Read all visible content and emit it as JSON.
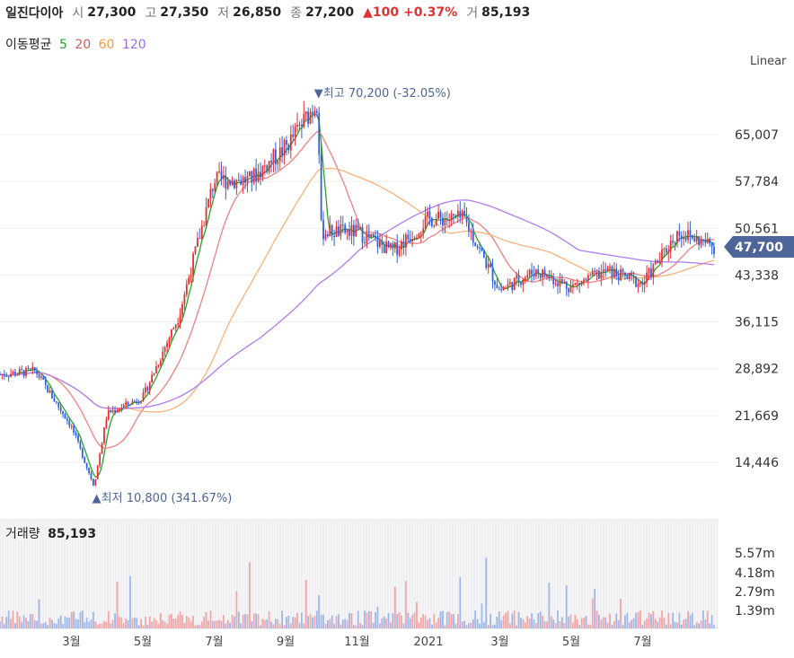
{
  "header": {
    "name": "일진다이아",
    "open_label": "시",
    "open": "27,300",
    "high_label": "고",
    "high": "27,350",
    "low_label": "저",
    "low": "26,850",
    "close_label": "종",
    "close": "27,200",
    "change": "▲100 +0.37%",
    "volume_label": "거",
    "volume": "85,193"
  },
  "moving_average": {
    "label": "이동평균",
    "periods": [
      {
        "label": "5",
        "color": "#2ca02c"
      },
      {
        "label": "20",
        "color": "#e25555"
      },
      {
        "label": "60",
        "color": "#f39c4a"
      },
      {
        "label": "120",
        "color": "#9b6cf2"
      }
    ]
  },
  "scale_mode": "Linear",
  "price_axis": {
    "ticks": [
      "65,007",
      "57,784",
      "50,561",
      "43,338",
      "36,115",
      "28,892",
      "21,669",
      "14,446"
    ],
    "current_price_label": "47,700",
    "current_price_color": "#4e6599"
  },
  "annotations": {
    "high": "▼최고 70,200 (-32.05%)",
    "low": "▲최저 10,800 (341.67%)"
  },
  "volume_panel": {
    "label": "거래량",
    "value": "85,193",
    "ticks": [
      "5.57m",
      "4.18m",
      "2.79m",
      "1.39m"
    ]
  },
  "x_axis": {
    "labels": [
      "3월",
      "5월",
      "7월",
      "9월",
      "11월",
      "2021",
      "3월",
      "5월",
      "7월"
    ]
  },
  "colors": {
    "up": "#e1312f",
    "down": "#2e63d8",
    "ma5": "#2ca02c",
    "ma20": "#f08080",
    "ma60": "#f7b27a",
    "ma120": "#b07cf0"
  },
  "chart_data": {
    "type": "candlestick",
    "title": "",
    "x_range": [
      "2020-01",
      "2021-08"
    ],
    "y_ticks": [
      14446,
      21669,
      28892,
      36115,
      43338,
      50561,
      57784,
      65007
    ],
    "approx_close_path": [
      {
        "x": "2020-01",
        "y": 28000
      },
      {
        "x": "2020-02",
        "y": 28500
      },
      {
        "x": "2020-03",
        "y": 20000
      },
      {
        "x": "2020-03-20",
        "y": 10800
      },
      {
        "x": "2020-04",
        "y": 22000
      },
      {
        "x": "2020-05",
        "y": 24500
      },
      {
        "x": "2020-06",
        "y": 37000
      },
      {
        "x": "2020-07",
        "y": 58000
      },
      {
        "x": "2020-08",
        "y": 58000
      },
      {
        "x": "2020-09",
        "y": 63000
      },
      {
        "x": "2020-09-28",
        "y": 70200
      },
      {
        "x": "2020-10",
        "y": 50000
      },
      {
        "x": "2020-11",
        "y": 50000
      },
      {
        "x": "2020-12",
        "y": 47000
      },
      {
        "x": "2021-01",
        "y": 52000
      },
      {
        "x": "2021-02",
        "y": 52000
      },
      {
        "x": "2021-03",
        "y": 41000
      },
      {
        "x": "2021-04",
        "y": 44000
      },
      {
        "x": "2021-05",
        "y": 41500
      },
      {
        "x": "2021-06",
        "y": 44000
      },
      {
        "x": "2021-07",
        "y": 42000
      },
      {
        "x": "2021-08",
        "y": 50000
      },
      {
        "x": "2021-08-31",
        "y": 47700
      }
    ],
    "extremes": {
      "high": 70200,
      "low": 10800
    },
    "volume_ticks": [
      "5.57m",
      "4.18m",
      "2.79m",
      "1.39m"
    ]
  }
}
